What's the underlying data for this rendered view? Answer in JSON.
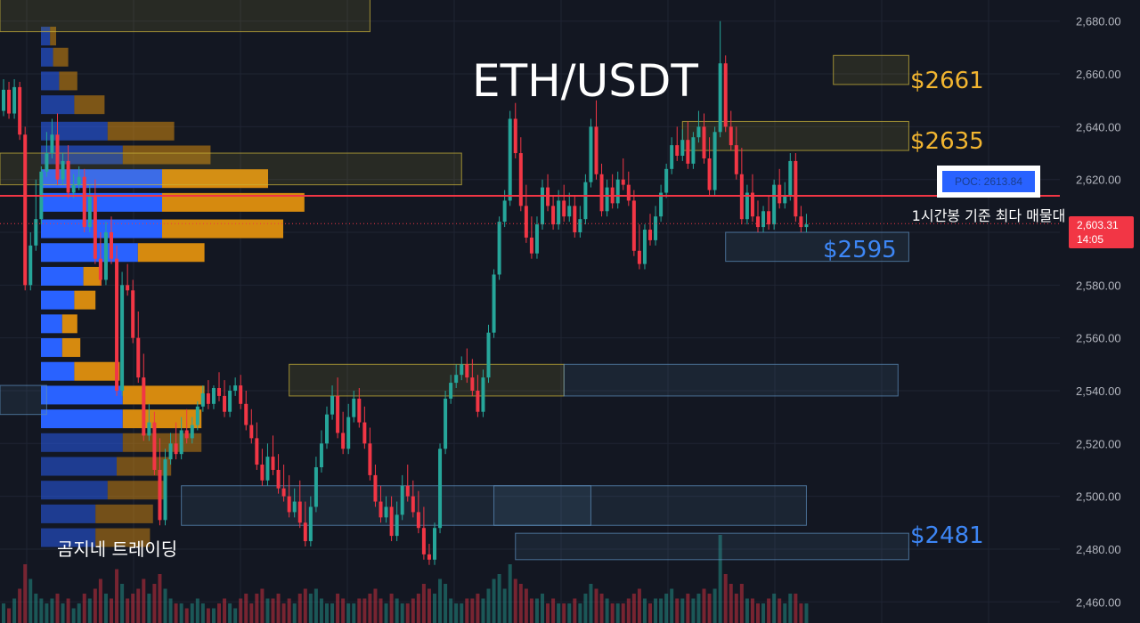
{
  "chart_data": {
    "type": "candlestick",
    "title": "ETH/USDT",
    "timeframe_note": "1시간봉 기준 최다 매물대",
    "watermark": "곰지네 트레이딩",
    "ylim": [
      2452,
      2688
    ],
    "y_ticks": [
      2460,
      2480,
      2500,
      2520,
      2540,
      2560,
      2580,
      2600,
      2620,
      2640,
      2660,
      2680
    ],
    "y_tick_labels": [
      "2,460.00",
      "2,480.00",
      "2,500.00",
      "2,520.00",
      "2,540.00",
      "2,560.00",
      "2,580.00",
      "2,600.00",
      "2,620.00",
      "2,640.00",
      "2,660.00",
      "2,680.00"
    ],
    "current_price": {
      "value": 2603.31,
      "label": "2,603.31",
      "countdown": "14:05",
      "color": "#f23645"
    },
    "poc": {
      "value": 2613.84,
      "label": "POC: 2613.84",
      "color": "#f23645"
    },
    "price_levels": [
      {
        "label": "$2661",
        "value": 2661,
        "color": "#f2b530"
      },
      {
        "label": "$2635",
        "value": 2635,
        "color": "#f2b530"
      },
      {
        "label": "$2595",
        "value": 2595,
        "color": "#3d86f5"
      },
      {
        "label": "$2481",
        "value": 2481,
        "color": "#3d86f5"
      }
    ],
    "zones": [
      {
        "kind": "resistance",
        "low": 2656,
        "high": 2667,
        "from_bar": 154,
        "to_bar": 168
      },
      {
        "kind": "resistance",
        "low": 2631,
        "high": 2642,
        "from_bar": 126,
        "to_bar": 168
      },
      {
        "kind": "resistance",
        "low": 2618,
        "high": 2630,
        "from_bar": -1,
        "to_bar": 85
      },
      {
        "kind": "resistance",
        "low": 2676,
        "high": 2700,
        "from_bar": -1,
        "to_bar": 68
      },
      {
        "kind": "resistance",
        "low": 2538,
        "high": 2550,
        "from_bar": 53,
        "to_bar": 104
      },
      {
        "kind": "support",
        "low": 2589,
        "high": 2600,
        "from_bar": 134,
        "to_bar": 168
      },
      {
        "kind": "support",
        "low": 2538,
        "high": 2550,
        "from_bar": 104,
        "to_bar": 166
      },
      {
        "kind": "support",
        "low": 2531,
        "high": 2542,
        "from_bar": -1,
        "to_bar": 8
      },
      {
        "kind": "support",
        "low": 2489,
        "high": 2504,
        "from_bar": 33,
        "to_bar": 109
      },
      {
        "kind": "support",
        "low": 2489,
        "high": 2504,
        "from_bar": 91,
        "to_bar": 149
      },
      {
        "kind": "support",
        "low": 2476,
        "high": 2486,
        "from_bar": 95,
        "to_bar": 168
      }
    ],
    "volume_profile": {
      "bins": [
        2674,
        2666,
        2657,
        2648,
        2638,
        2629,
        2620,
        2611,
        2601,
        2592,
        2583,
        2574,
        2565,
        2556,
        2547,
        2538,
        2529,
        2520,
        2511,
        2502,
        2493,
        2484
      ],
      "buy": [
        3,
        4,
        6,
        11,
        22,
        27,
        40,
        40,
        40,
        32,
        14,
        11,
        7,
        7,
        11,
        27,
        27,
        27,
        25,
        22,
        18,
        18
      ],
      "sell": [
        2,
        5,
        6,
        10,
        22,
        29,
        35,
        47,
        40,
        22,
        6,
        7,
        5,
        6,
        15,
        27,
        26,
        26,
        18,
        19,
        19,
        18
      ],
      "buy_color": "#2962ff",
      "sell_color": "#d68a0f"
    },
    "candles": [
      {
        "o": 2646,
        "h": 2658,
        "c": 2654
      },
      {
        "o": 2654,
        "h": 2657,
        "c": 2645
      },
      {
        "o": 2645,
        "h": 2658,
        "c": 2655
      },
      {
        "o": 2655,
        "h": 2657,
        "c": 2637
      },
      {
        "o": 2637,
        "h": 2640,
        "c": 2580
      },
      {
        "o": 2580,
        "h": 2600,
        "c": 2595
      },
      {
        "o": 2595,
        "h": 2620,
        "c": 2605
      },
      {
        "o": 2605,
        "h": 2625,
        "c": 2623
      },
      {
        "o": 2623,
        "h": 2638,
        "c": 2630
      },
      {
        "o": 2630,
        "h": 2643,
        "c": 2637
      },
      {
        "o": 2637,
        "h": 2645,
        "c": 2620
      },
      {
        "o": 2620,
        "h": 2630,
        "c": 2627
      },
      {
        "o": 2627,
        "h": 2633,
        "c": 2615
      },
      {
        "o": 2615,
        "h": 2622,
        "c": 2618
      },
      {
        "o": 2618,
        "h": 2625,
        "c": 2621
      },
      {
        "o": 2621,
        "h": 2624,
        "c": 2602
      },
      {
        "o": 2602,
        "h": 2618,
        "c": 2614
      },
      {
        "o": 2614,
        "h": 2620,
        "c": 2590
      },
      {
        "o": 2590,
        "h": 2600,
        "c": 2582
      },
      {
        "o": 2582,
        "h": 2604,
        "c": 2600
      },
      {
        "o": 2600,
        "h": 2606,
        "c": 2590
      },
      {
        "o": 2590,
        "h": 2595,
        "c": 2540
      },
      {
        "o": 2540,
        "h": 2585,
        "c": 2580
      },
      {
        "o": 2580,
        "h": 2588,
        "c": 2578
      },
      {
        "o": 2578,
        "h": 2582,
        "c": 2560
      },
      {
        "o": 2560,
        "h": 2570,
        "c": 2545
      },
      {
        "o": 2545,
        "h": 2554,
        "c": 2523
      },
      {
        "o": 2523,
        "h": 2535,
        "c": 2528
      },
      {
        "o": 2528,
        "h": 2532,
        "c": 2510
      },
      {
        "o": 2510,
        "h": 2522,
        "c": 2491
      },
      {
        "o": 2491,
        "h": 2518,
        "c": 2514
      },
      {
        "o": 2514,
        "h": 2524,
        "c": 2520
      },
      {
        "o": 2520,
        "h": 2528,
        "c": 2516
      },
      {
        "o": 2516,
        "h": 2530,
        "c": 2525
      },
      {
        "o": 2525,
        "h": 2533,
        "c": 2522
      },
      {
        "o": 2522,
        "h": 2530,
        "c": 2527
      },
      {
        "o": 2527,
        "h": 2536,
        "c": 2534
      },
      {
        "o": 2534,
        "h": 2542,
        "c": 2539
      },
      {
        "o": 2539,
        "h": 2544,
        "c": 2535
      },
      {
        "o": 2535,
        "h": 2542,
        "c": 2541
      },
      {
        "o": 2541,
        "h": 2547,
        "c": 2538
      },
      {
        "o": 2538,
        "h": 2544,
        "c": 2532
      },
      {
        "o": 2532,
        "h": 2542,
        "c": 2540
      },
      {
        "o": 2540,
        "h": 2545,
        "c": 2542
      },
      {
        "o": 2542,
        "h": 2546,
        "c": 2535
      },
      {
        "o": 2535,
        "h": 2540,
        "c": 2527
      },
      {
        "o": 2527,
        "h": 2533,
        "c": 2522
      },
      {
        "o": 2522,
        "h": 2528,
        "c": 2512
      },
      {
        "o": 2512,
        "h": 2518,
        "c": 2506
      },
      {
        "o": 2506,
        "h": 2520,
        "c": 2515
      },
      {
        "o": 2515,
        "h": 2523,
        "c": 2510
      },
      {
        "o": 2510,
        "h": 2516,
        "c": 2503
      },
      {
        "o": 2503,
        "h": 2512,
        "c": 2500
      },
      {
        "o": 2500,
        "h": 2508,
        "c": 2494
      },
      {
        "o": 2494,
        "h": 2503,
        "c": 2498
      },
      {
        "o": 2498,
        "h": 2506,
        "c": 2490
      },
      {
        "o": 2490,
        "h": 2498,
        "c": 2483
      },
      {
        "o": 2483,
        "h": 2500,
        "c": 2496
      },
      {
        "o": 2496,
        "h": 2515,
        "c": 2511
      },
      {
        "o": 2511,
        "h": 2525,
        "c": 2520
      },
      {
        "o": 2520,
        "h": 2534,
        "c": 2531
      },
      {
        "o": 2531,
        "h": 2542,
        "c": 2538
      },
      {
        "o": 2538,
        "h": 2545,
        "c": 2524
      },
      {
        "o": 2524,
        "h": 2532,
        "c": 2518
      },
      {
        "o": 2518,
        "h": 2535,
        "c": 2530
      },
      {
        "o": 2530,
        "h": 2540,
        "c": 2537
      },
      {
        "o": 2537,
        "h": 2541,
        "c": 2528
      },
      {
        "o": 2528,
        "h": 2534,
        "c": 2520
      },
      {
        "o": 2520,
        "h": 2526,
        "c": 2508
      },
      {
        "o": 2508,
        "h": 2512,
        "c": 2498
      },
      {
        "o": 2498,
        "h": 2504,
        "c": 2492
      },
      {
        "o": 2492,
        "h": 2500,
        "c": 2496
      },
      {
        "o": 2496,
        "h": 2500,
        "c": 2485
      },
      {
        "o": 2485,
        "h": 2498,
        "c": 2493
      },
      {
        "o": 2493,
        "h": 2508,
        "c": 2504
      },
      {
        "o": 2504,
        "h": 2512,
        "c": 2500
      },
      {
        "o": 2500,
        "h": 2506,
        "c": 2494
      },
      {
        "o": 2494,
        "h": 2502,
        "c": 2488
      },
      {
        "o": 2488,
        "h": 2496,
        "c": 2478
      },
      {
        "o": 2478,
        "h": 2482,
        "c": 2476
      },
      {
        "o": 2476,
        "h": 2490,
        "c": 2488
      },
      {
        "o": 2488,
        "h": 2520,
        "c": 2518
      },
      {
        "o": 2518,
        "h": 2540,
        "c": 2537
      },
      {
        "o": 2537,
        "h": 2546,
        "c": 2543
      },
      {
        "o": 2543,
        "h": 2550,
        "c": 2546
      },
      {
        "o": 2546,
        "h": 2553,
        "c": 2550
      },
      {
        "o": 2550,
        "h": 2556,
        "c": 2545
      },
      {
        "o": 2545,
        "h": 2552,
        "c": 2540
      },
      {
        "o": 2540,
        "h": 2546,
        "c": 2532
      },
      {
        "o": 2532,
        "h": 2548,
        "c": 2545
      },
      {
        "o": 2545,
        "h": 2565,
        "c": 2562
      },
      {
        "o": 2562,
        "h": 2586,
        "c": 2584
      },
      {
        "o": 2584,
        "h": 2606,
        "c": 2604
      },
      {
        "o": 2604,
        "h": 2616,
        "c": 2612
      },
      {
        "o": 2612,
        "h": 2646,
        "c": 2643
      },
      {
        "o": 2643,
        "h": 2649,
        "c": 2630
      },
      {
        "o": 2630,
        "h": 2636,
        "c": 2610
      },
      {
        "o": 2610,
        "h": 2618,
        "c": 2598
      },
      {
        "o": 2598,
        "h": 2606,
        "c": 2592
      },
      {
        "o": 2592,
        "h": 2606,
        "c": 2603
      },
      {
        "o": 2603,
        "h": 2620,
        "c": 2617
      },
      {
        "o": 2617,
        "h": 2622,
        "c": 2610
      },
      {
        "o": 2610,
        "h": 2614,
        "c": 2603
      },
      {
        "o": 2603,
        "h": 2616,
        "c": 2612
      },
      {
        "o": 2612,
        "h": 2618,
        "c": 2606
      },
      {
        "o": 2606,
        "h": 2615,
        "c": 2610
      },
      {
        "o": 2610,
        "h": 2614,
        "c": 2600
      },
      {
        "o": 2600,
        "h": 2610,
        "c": 2605
      },
      {
        "o": 2605,
        "h": 2622,
        "c": 2619
      },
      {
        "o": 2619,
        "h": 2643,
        "c": 2640
      },
      {
        "o": 2640,
        "h": 2650,
        "c": 2622
      },
      {
        "o": 2622,
        "h": 2626,
        "c": 2608
      },
      {
        "o": 2608,
        "h": 2620,
        "c": 2617
      },
      {
        "o": 2617,
        "h": 2622,
        "c": 2611
      },
      {
        "o": 2611,
        "h": 2623,
        "c": 2620
      },
      {
        "o": 2620,
        "h": 2628,
        "c": 2618
      },
      {
        "o": 2618,
        "h": 2623,
        "c": 2612
      },
      {
        "o": 2612,
        "h": 2616,
        "c": 2593
      },
      {
        "o": 2593,
        "h": 2603,
        "c": 2588
      },
      {
        "o": 2588,
        "h": 2603,
        "c": 2601
      },
      {
        "o": 2601,
        "h": 2607,
        "c": 2597
      },
      {
        "o": 2597,
        "h": 2610,
        "c": 2606
      },
      {
        "o": 2606,
        "h": 2618,
        "c": 2615
      },
      {
        "o": 2615,
        "h": 2626,
        "c": 2624
      },
      {
        "o": 2624,
        "h": 2636,
        "c": 2633
      },
      {
        "o": 2633,
        "h": 2640,
        "c": 2629
      },
      {
        "o": 2629,
        "h": 2639,
        "c": 2635
      },
      {
        "o": 2635,
        "h": 2642,
        "c": 2626
      },
      {
        "o": 2626,
        "h": 2638,
        "c": 2636
      },
      {
        "o": 2636,
        "h": 2646,
        "c": 2640
      },
      {
        "o": 2640,
        "h": 2645,
        "c": 2628
      },
      {
        "o": 2628,
        "h": 2636,
        "c": 2616
      },
      {
        "o": 2616,
        "h": 2640,
        "c": 2638
      },
      {
        "o": 2638,
        "h": 2680,
        "c": 2664
      },
      {
        "o": 2664,
        "h": 2667,
        "c": 2640
      },
      {
        "o": 2640,
        "h": 2646,
        "c": 2633
      },
      {
        "o": 2633,
        "h": 2640,
        "c": 2622
      },
      {
        "o": 2622,
        "h": 2632,
        "c": 2605
      },
      {
        "o": 2605,
        "h": 2618,
        "c": 2615
      },
      {
        "o": 2615,
        "h": 2622,
        "c": 2606
      },
      {
        "o": 2606,
        "h": 2612,
        "c": 2602
      },
      {
        "o": 2602,
        "h": 2610,
        "c": 2608
      },
      {
        "o": 2608,
        "h": 2614,
        "c": 2603
      },
      {
        "o": 2603,
        "h": 2620,
        "c": 2618
      },
      {
        "o": 2618,
        "h": 2624,
        "c": 2611
      },
      {
        "o": 2611,
        "h": 2619,
        "c": 2614
      },
      {
        "o": 2614,
        "h": 2630,
        "c": 2627
      },
      {
        "o": 2627,
        "h": 2630,
        "c": 2606
      },
      {
        "o": 2606,
        "h": 2610,
        "c": 2602
      },
      {
        "o": 2602,
        "h": 2607,
        "c": 2603
      }
    ],
    "volume_bars": [
      4,
      3,
      5,
      7,
      12,
      9,
      6,
      5,
      4,
      5,
      6,
      4,
      5,
      3,
      4,
      6,
      5,
      7,
      9,
      6,
      5,
      11,
      8,
      5,
      6,
      7,
      9,
      6,
      8,
      10,
      7,
      5,
      4,
      4,
      3,
      4,
      5,
      4,
      3,
      3,
      4,
      5,
      4,
      3,
      5,
      6,
      4,
      6,
      7,
      5,
      5,
      6,
      4,
      5,
      4,
      6,
      7,
      6,
      7,
      5,
      4,
      4,
      6,
      5,
      4,
      4,
      5,
      5,
      6,
      7,
      5,
      4,
      6,
      5,
      4,
      4,
      5,
      6,
      8,
      7,
      6,
      9,
      8,
      5,
      4,
      4,
      5,
      5,
      6,
      5,
      7,
      9,
      10,
      7,
      12,
      9,
      8,
      7,
      5,
      5,
      6,
      4,
      5,
      4,
      4,
      4,
      5,
      4,
      6,
      8,
      7,
      6,
      5,
      4,
      4,
      4,
      5,
      6,
      7,
      5,
      4,
      5,
      5,
      6,
      7,
      5,
      5,
      6,
      5,
      6,
      7,
      6,
      7,
      18,
      10,
      8,
      6,
      8,
      5,
      5,
      4,
      4,
      5,
      6,
      5,
      4,
      6,
      6,
      4,
      4
    ],
    "colors": {
      "up": "#26a69a",
      "down": "#f23645",
      "resistance_zone": "#c9b33a",
      "support_zone": "#5b8bb8",
      "background": "#131722",
      "grid": "#1f2433",
      "title": "#ffffff"
    }
  }
}
